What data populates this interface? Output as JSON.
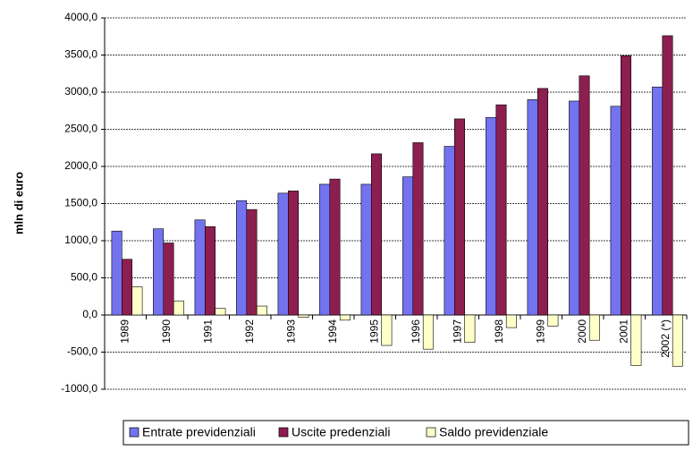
{
  "chart_data": {
    "type": "bar",
    "y_label": "mln di euro",
    "categories": [
      "1989",
      "1990",
      "1991",
      "1992",
      "1993",
      "1994",
      "1995",
      "1996",
      "1997",
      "1998",
      "1999",
      "2000",
      "2001",
      "2002 (*)"
    ],
    "series": [
      {
        "name": "Entrate previdenziali",
        "color": "#7373f0",
        "values": [
          1130,
          1160,
          1280,
          1540,
          1640,
          1760,
          1760,
          1860,
          2270,
          2660,
          2900,
          2880,
          2810,
          3070
        ]
      },
      {
        "name": "Uscite predenziali",
        "color": "#8c1f4f",
        "values": [
          750,
          970,
          1190,
          1420,
          1670,
          1830,
          2170,
          2320,
          2640,
          2830,
          3050,
          3220,
          3490,
          3760
        ]
      },
      {
        "name": "Saldo previdenziale",
        "color": "#ffffc8",
        "values": [
          380,
          190,
          90,
          120,
          -30,
          -70,
          -410,
          -460,
          -370,
          -170,
          -150,
          -340,
          -680,
          -690
        ]
      }
    ],
    "ylim": [
      -1000,
      4000
    ],
    "yticks": [
      {
        "value": -1000,
        "label": "-1000,0"
      },
      {
        "value": -500,
        "label": "-500,0"
      },
      {
        "value": 0,
        "label": "0,0"
      },
      {
        "value": 500,
        "label": "500,0"
      },
      {
        "value": 1000,
        "label": "1000,0"
      },
      {
        "value": 1500,
        "label": "1500,0"
      },
      {
        "value": 2000,
        "label": "2000,0"
      },
      {
        "value": 2500,
        "label": "2500,0"
      },
      {
        "value": 3000,
        "label": "3000,0"
      },
      {
        "value": 3500,
        "label": "3500,0"
      },
      {
        "value": 4000,
        "label": "4000,0"
      }
    ],
    "grid": true
  }
}
